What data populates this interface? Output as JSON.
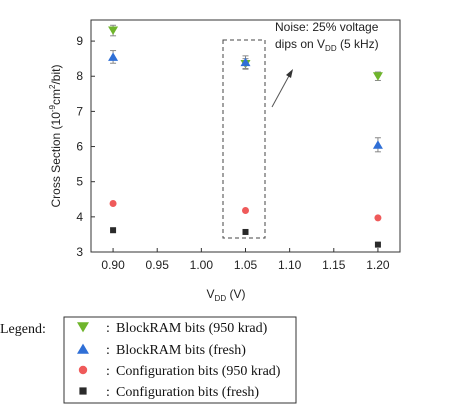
{
  "chart_data": {
    "type": "scatter",
    "xlabel": "V",
    "xlabel_sub": "DD",
    "xlabel_unit": " (V)",
    "ylabel": "Cross Section (10",
    "ylabel_sup": "-9",
    "ylabel_mid": "cm",
    "ylabel_sup2": "2",
    "ylabel_end": "/bit)",
    "xlim": [
      0.875,
      1.225
    ],
    "ylim": [
      3,
      9.6
    ],
    "xticks": [
      "0.90",
      "0.95",
      "1.00",
      "1.05",
      "1.10",
      "1.15",
      "1.20"
    ],
    "xtick_values": [
      0.9,
      0.95,
      1.0,
      1.05,
      1.1,
      1.15,
      1.2
    ],
    "yticks": [
      "3",
      "4",
      "5",
      "6",
      "7",
      "8",
      "9"
    ],
    "ytick_values": [
      3,
      4,
      5,
      6,
      7,
      8,
      9
    ],
    "series": [
      {
        "name": "BlockRAM bits (950 krad)",
        "marker": "triangle-down",
        "color": "#6fb52c",
        "x": [
          0.9,
          1.05,
          1.2
        ],
        "y": [
          9.3,
          8.35,
          8.0
        ],
        "err": [
          0.15,
          0.15,
          0.12
        ]
      },
      {
        "name": "BlockRAM bits (fresh)",
        "marker": "triangle-up",
        "color": "#2f6fd6",
        "x": [
          0.9,
          1.05,
          1.2
        ],
        "y": [
          8.55,
          8.4,
          6.05
        ],
        "err": [
          0.18,
          0.18,
          0.2
        ]
      },
      {
        "name": "Configuration bits (950 krad)",
        "marker": "circle",
        "color": "#ef5a5a",
        "x": [
          0.9,
          1.05,
          1.2
        ],
        "y": [
          4.38,
          4.18,
          3.97
        ],
        "err": [
          0,
          0,
          0
        ]
      },
      {
        "name": "Configuration bits (fresh)",
        "marker": "square",
        "color": "#2a2a2a",
        "x": [
          0.9,
          1.05,
          1.2
        ],
        "y": [
          3.62,
          3.57,
          3.21
        ],
        "err": [
          0,
          0,
          0
        ]
      }
    ],
    "annotation": {
      "line1": "Noise: 25% voltage",
      "line2_pre": "dips on V",
      "line2_sub": "DD",
      "line2_post": " (5 kHz)"
    },
    "legend_title": "Legend:",
    "legend_separator": ":"
  }
}
